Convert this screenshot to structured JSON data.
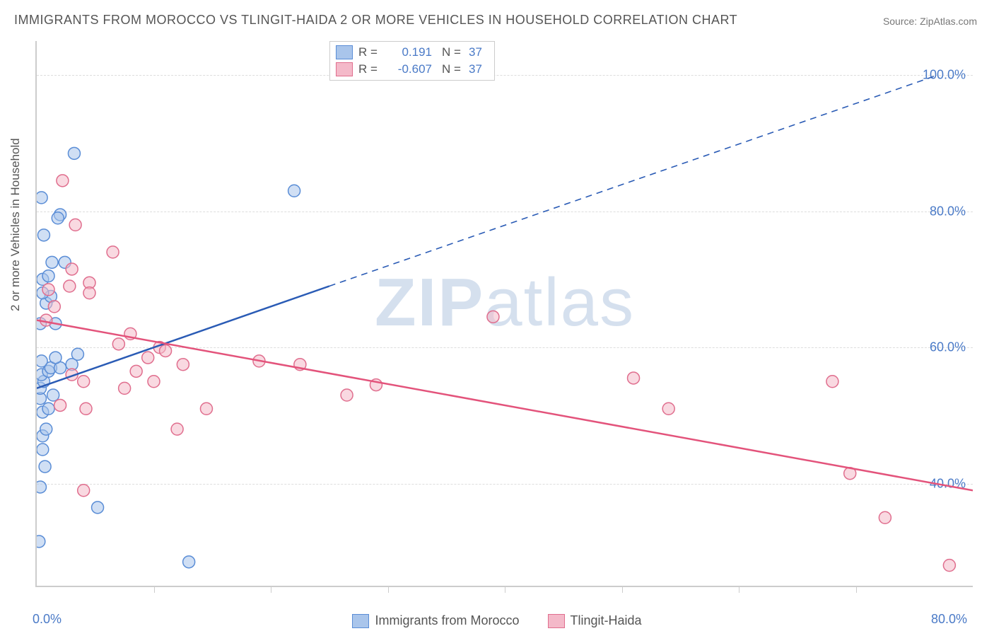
{
  "title": "IMMIGRANTS FROM MOROCCO VS TLINGIT-HAIDA 2 OR MORE VEHICLES IN HOUSEHOLD CORRELATION CHART",
  "source_label": "Source: ",
  "source_name": "ZipAtlas.com",
  "watermark_main": "ZIP",
  "watermark_sub": "atlas",
  "ylabel": "2 or more Vehicles in Household",
  "chart": {
    "type": "scatter-correlation",
    "background_color": "#ffffff",
    "grid_color": "#dddddd",
    "axis_color": "#cccccc",
    "tick_label_color": "#4a7ac7",
    "axis_label_color": "#555555",
    "xlim": [
      0,
      80
    ],
    "ylim": [
      25,
      105
    ],
    "x_ticks_major": [
      0,
      80
    ],
    "x_ticks_minor": [
      10,
      20,
      30,
      40,
      50,
      60,
      70
    ],
    "y_ticks": [
      40,
      60,
      80,
      100
    ],
    "x_tick_labels": {
      "0": "0.0%",
      "80": "80.0%"
    },
    "y_tick_labels": {
      "40": "40.0%",
      "60": "60.0%",
      "80": "80.0%",
      "100": "100.0%"
    },
    "series": [
      {
        "name": "Immigrants from Morocco",
        "marker_fill": "#a9c5eb",
        "marker_stroke": "#5a8dd6",
        "marker_fill_opacity": 0.55,
        "marker_radius": 8.5,
        "line_color": "#2a5bb5",
        "line_width": 2.5,
        "R": "0.191",
        "N": "37",
        "regression": {
          "x1": 0,
          "y1": 54,
          "x2_solid": 25,
          "y2_solid": 69,
          "x2_dash": 77,
          "y2_dash": 100
        },
        "points": [
          [
            0.2,
            31.5
          ],
          [
            0.3,
            39.5
          ],
          [
            0.5,
            45
          ],
          [
            0.5,
            47
          ],
          [
            0.7,
            42.5
          ],
          [
            0.8,
            48
          ],
          [
            0.5,
            50.5
          ],
          [
            1.0,
            51
          ],
          [
            0.3,
            52.5
          ],
          [
            1.4,
            53
          ],
          [
            0.3,
            54
          ],
          [
            0.6,
            55
          ],
          [
            0.4,
            56
          ],
          [
            1.0,
            56.5
          ],
          [
            1.2,
            57
          ],
          [
            2.0,
            57
          ],
          [
            1.6,
            58.5
          ],
          [
            0.4,
            58
          ],
          [
            3.0,
            57.5
          ],
          [
            3.5,
            59
          ],
          [
            0.3,
            63.5
          ],
          [
            1.6,
            63.5
          ],
          [
            0.8,
            66.5
          ],
          [
            1.2,
            67.5
          ],
          [
            0.5,
            68
          ],
          [
            0.5,
            70
          ],
          [
            1.0,
            70.5
          ],
          [
            2.4,
            72.5
          ],
          [
            1.3,
            72.5
          ],
          [
            0.6,
            76.5
          ],
          [
            2.0,
            79.5
          ],
          [
            1.8,
            79
          ],
          [
            0.4,
            82
          ],
          [
            3.2,
            88.5
          ],
          [
            5.2,
            36.5
          ],
          [
            13.0,
            28.5
          ],
          [
            22.0,
            83
          ]
        ]
      },
      {
        "name": "Tlingit-Haida",
        "marker_fill": "#f4b9c9",
        "marker_stroke": "#e06e8e",
        "marker_fill_opacity": 0.55,
        "marker_radius": 8.5,
        "line_color": "#e3537b",
        "line_width": 2.5,
        "R": "-0.607",
        "N": "37",
        "regression": {
          "x1": 0,
          "y1": 64,
          "x2_solid": 80,
          "y2_solid": 39,
          "x2_dash": 80,
          "y2_dash": 39
        },
        "points": [
          [
            0.8,
            64
          ],
          [
            1.5,
            66
          ],
          [
            1.0,
            68.5
          ],
          [
            2.2,
            84.5
          ],
          [
            2.8,
            69
          ],
          [
            3.0,
            71.5
          ],
          [
            3.3,
            78
          ],
          [
            3.0,
            56
          ],
          [
            4.0,
            55
          ],
          [
            4.2,
            51
          ],
          [
            4.5,
            69.5
          ],
          [
            4.5,
            68
          ],
          [
            6.5,
            74
          ],
          [
            7.0,
            60.5
          ],
          [
            7.5,
            54
          ],
          [
            8.0,
            62
          ],
          [
            8.5,
            56.5
          ],
          [
            9.5,
            58.5
          ],
          [
            10.5,
            60
          ],
          [
            10.0,
            55
          ],
          [
            11.0,
            59.5
          ],
          [
            12.0,
            48
          ],
          [
            12.5,
            57.5
          ],
          [
            14.5,
            51
          ],
          [
            19.0,
            58
          ],
          [
            22.5,
            57.5
          ],
          [
            26.5,
            53
          ],
          [
            29.0,
            54.5
          ],
          [
            39.0,
            64.5
          ],
          [
            51.0,
            55.5
          ],
          [
            54.0,
            51
          ],
          [
            68.0,
            55
          ],
          [
            69.5,
            41.5
          ],
          [
            72.5,
            35
          ],
          [
            78.0,
            28
          ],
          [
            4.0,
            39
          ],
          [
            2.0,
            51.5
          ]
        ]
      }
    ]
  },
  "legend_top_labels": {
    "R": "R =",
    "N": "N ="
  },
  "legend_bottom": [
    {
      "label": "Immigrants from Morocco",
      "fill": "#a9c5eb",
      "stroke": "#5a8dd6"
    },
    {
      "label": "Tlingit-Haida",
      "fill": "#f4b9c9",
      "stroke": "#e06e8e"
    }
  ]
}
